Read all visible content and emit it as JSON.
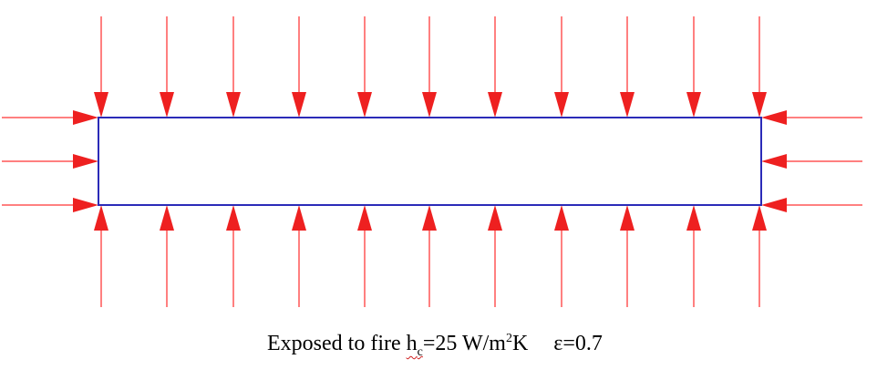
{
  "diagram": {
    "caption": {
      "prefix": "Exposed to fire ",
      "h_symbol": "h",
      "h_subscript": "c",
      "h_value": "=25 W/m",
      "unit_superscript": "2",
      "unit_suffix": "K",
      "epsilon": "ε=0.7"
    },
    "colors": {
      "arrow": "#ff0000",
      "arrow_head": "#ee2020",
      "body_outline": "#2b2bb8",
      "text": "#000000"
    }
  }
}
